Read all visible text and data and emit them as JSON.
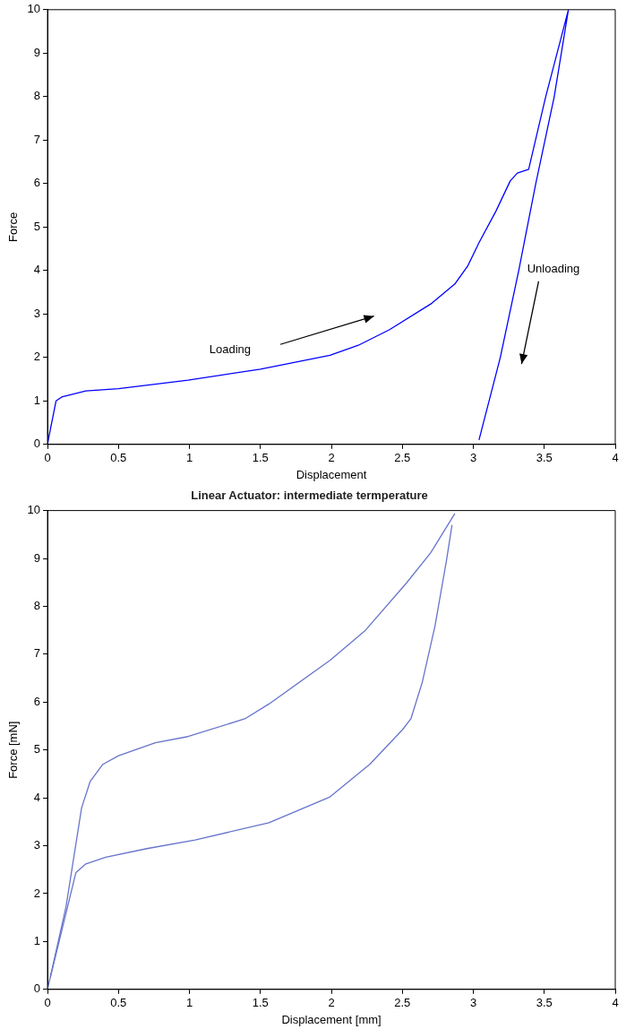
{
  "chart_data": [
    {
      "type": "line",
      "xlabel": "Displacement",
      "ylabel": "Force",
      "xlim": [
        0,
        4
      ],
      "ylim": [
        0,
        10
      ],
      "xticks": [
        0,
        0.5,
        1,
        1.5,
        2,
        2.5,
        3,
        3.5,
        4
      ],
      "yticks": [
        0,
        1,
        2,
        3,
        4,
        5,
        6,
        7,
        8,
        9,
        10
      ],
      "grid": false,
      "legend": false,
      "marker": "none",
      "line_style": "solid",
      "annotations": [
        "Loading",
        "Unloading"
      ],
      "series": [
        {
          "color": "#0000ff",
          "x": [
            0,
            0.01,
            0.06,
            0.1,
            0.27,
            0.5,
            0.99,
            1.5,
            1.99,
            2.19,
            2.41,
            2.7,
            2.87,
            2.96,
            3.04,
            3.16,
            3.26,
            3.31,
            3.39,
            3.51,
            3.67,
            3.57,
            3.44,
            3.32,
            3.19,
            3.04
          ],
          "values": [
            0,
            0.18,
            1.0,
            1.09,
            1.23,
            1.28,
            1.48,
            1.73,
            2.05,
            2.28,
            2.64,
            3.23,
            3.69,
            4.1,
            4.64,
            5.37,
            6.06,
            6.24,
            6.33,
            8.0,
            10,
            8,
            6,
            4,
            2,
            0.1
          ]
        }
      ]
    },
    {
      "type": "line",
      "title": "Linear Actuator: intermediate termperature",
      "xlabel": "Displacement [mm]",
      "ylabel": "Force [mN]",
      "xlim": [
        0,
        4
      ],
      "ylim": [
        0,
        10
      ],
      "xticks": [
        0,
        0.5,
        1,
        1.5,
        2,
        2.5,
        3,
        3.5,
        4
      ],
      "yticks": [
        0,
        1,
        2,
        3,
        4,
        5,
        6,
        7,
        8,
        9,
        10
      ],
      "grid": false,
      "legend": false,
      "marker": "none",
      "line_style": "solid",
      "series": [
        {
          "color": "#6674cc",
          "x": [
            0,
            0.13,
            0.24,
            0.3,
            0.39,
            0.5,
            0.76,
            0.99,
            1.39,
            1.56,
            1.99,
            2.24,
            2.53,
            2.7,
            2.87
          ],
          "values": [
            0,
            1.72,
            3.79,
            4.34,
            4.7,
            4.88,
            5.15,
            5.28,
            5.65,
            5.96,
            6.87,
            7.5,
            8.49,
            9.12,
            9.94
          ]
        },
        {
          "color": "#6674cc",
          "x": [
            0.02,
            0.2,
            0.27,
            0.41,
            0.7,
            1.04,
            1.56,
            1.99,
            2.27,
            2.5,
            2.56,
            2.64,
            2.73,
            2.81,
            2.85
          ],
          "values": [
            0.25,
            2.44,
            2.62,
            2.76,
            2.94,
            3.12,
            3.48,
            4.02,
            4.7,
            5.42,
            5.65,
            6.41,
            7.59,
            8.94,
            9.7
          ]
        }
      ]
    }
  ]
}
